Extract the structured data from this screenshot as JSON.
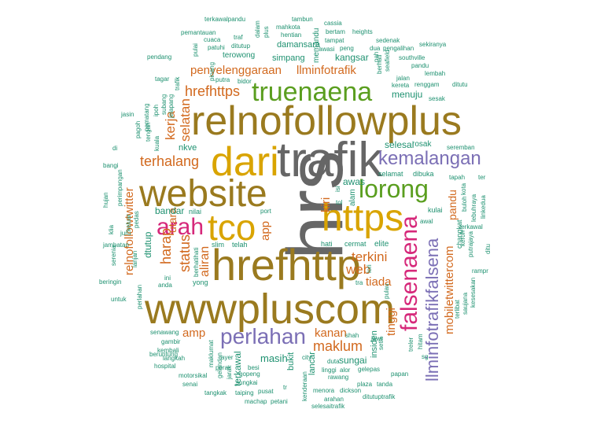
{
  "colors": {
    "olive": "#9a7a1f",
    "gray": "#666666",
    "gold": "#d9a400",
    "green": "#5a9e1f",
    "orange": "#d2691e",
    "magenta": "#d6287a",
    "purple": "#7b6fb5",
    "teal": "#1e9170"
  },
  "words": [
    {
      "text": "hrs",
      "color": "gray",
      "rotate": true
    },
    {
      "text": "trafik",
      "color": "gray",
      "rotate": false
    },
    {
      "text": "wwwpluscom",
      "color": "olive",
      "rotate": false
    },
    {
      "text": "relnofollowplus",
      "color": "olive",
      "rotate": false
    },
    {
      "text": "hrefhttp",
      "color": "olive",
      "rotate": false
    },
    {
      "text": "website",
      "color": "olive",
      "rotate": false
    },
    {
      "text": "dari",
      "color": "gold",
      "rotate": false
    },
    {
      "text": "https",
      "color": "gold",
      "rotate": false
    },
    {
      "text": "tco",
      "color": "gold",
      "rotate": false
    },
    {
      "text": "truenaena",
      "color": "green",
      "rotate": false
    },
    {
      "text": "lorong",
      "color": "green",
      "rotate": false
    },
    {
      "text": "falsenaena",
      "color": "magenta",
      "rotate": true
    },
    {
      "text": "arah",
      "color": "magenta",
      "rotate": false
    },
    {
      "text": "perlahan",
      "color": "purple",
      "rotate": false
    },
    {
      "text": "kemalangan",
      "color": "purple",
      "rotate": false
    },
    {
      "text": "llminfotrafikfalsena",
      "color": "purple",
      "rotate": true
    },
    {
      "text": "maklum",
      "color": "orange",
      "rotate": false
    },
    {
      "text": "hrefhttps",
      "color": "orange",
      "rotate": false
    },
    {
      "text": "terhalang",
      "color": "orange",
      "rotate": false
    },
    {
      "text": "penyelenggaraan",
      "color": "orange",
      "rotate": false
    },
    {
      "text": "llminfotrafik",
      "color": "orange",
      "rotate": false
    },
    {
      "text": "mobiletwittercom",
      "color": "orange",
      "rotate": true
    },
    {
      "text": "relnofollowtwitter",
      "color": "orange",
      "rotate": true
    },
    {
      "text": "selatan",
      "color": "orange",
      "rotate": true
    },
    {
      "text": "kerja",
      "color": "orange",
      "rotate": true
    },
    {
      "text": "harap",
      "color": "orange",
      "rotate": true
    },
    {
      "text": "status",
      "color": "orange",
      "rotate": true
    },
    {
      "text": "aliran",
      "color": "orange",
      "rotate": true
    },
    {
      "text": "terkini",
      "color": "orange",
      "rotate": false
    },
    {
      "text": "web",
      "color": "orange",
      "rotate": false
    },
    {
      "text": "tiada",
      "color": "orange",
      "rotate": false
    },
    {
      "text": "kanan",
      "color": "orange",
      "rotate": false
    },
    {
      "text": "tinggi",
      "color": "orange",
      "rotate": true
    },
    {
      "text": "amp",
      "color": "orange",
      "rotate": false
    },
    {
      "text": "app",
      "color": "orange",
      "rotate": true
    },
    {
      "text": "kiri",
      "color": "orange",
      "rotate": true
    },
    {
      "text": "pandu",
      "color": "orange",
      "rotate": true
    },
    {
      "text": "utara",
      "color": "orange",
      "rotate": true
    },
    {
      "text": "masih",
      "color": "teal",
      "rotate": false
    },
    {
      "text": "menuju",
      "color": "teal",
      "rotate": false
    },
    {
      "text": "selesai",
      "color": "teal",
      "rotate": false
    },
    {
      "text": "awas",
      "color": "teal",
      "rotate": false
    },
    {
      "text": "sungai",
      "color": "teal",
      "rotate": false
    },
    {
      "text": "kangsar",
      "color": "teal",
      "rotate": false
    },
    {
      "text": "simpang",
      "color": "teal",
      "rotate": false
    },
    {
      "text": "damansara",
      "color": "teal",
      "rotate": false
    },
    {
      "text": "terowong",
      "color": "teal",
      "rotate": false
    },
    {
      "text": "insiden",
      "color": "teal",
      "rotate": true
    },
    {
      "text": "terkawal",
      "color": "teal",
      "rotate": true
    },
    {
      "text": "bandar",
      "color": "teal",
      "rotate": false
    },
    {
      "text": "lancar",
      "color": "teal",
      "rotate": true
    },
    {
      "text": "bukit",
      "color": "teal",
      "rotate": true
    },
    {
      "text": "elite",
      "color": "teal",
      "rotate": false
    },
    {
      "text": "rosak",
      "color": "teal",
      "rotate": false
    },
    {
      "text": "nkve",
      "color": "teal",
      "rotate": false
    },
    {
      "text": "dtutup",
      "color": "teal",
      "rotate": true
    },
    {
      "text": "alam",
      "color": "teal",
      "rotate": true
    },
    {
      "text": "memandu",
      "color": "teal",
      "rotate": true
    },
    {
      "text": "selamat",
      "color": "teal",
      "rotate": false
    },
    {
      "text": "dibuka",
      "color": "teal",
      "rotate": false
    },
    {
      "text": "changkat",
      "color": "teal",
      "rotate": true
    },
    {
      "text": "kulai",
      "color": "teal",
      "rotate": false
    },
    {
      "text": "cermat",
      "color": "teal",
      "rotate": false
    },
    {
      "text": "hati",
      "color": "teal",
      "rotate": false
    },
    {
      "text": "slim",
      "color": "teal",
      "rotate": false
    },
    {
      "text": "telah",
      "color": "teal",
      "rotate": false
    },
    {
      "text": "nilai",
      "color": "teal",
      "rotate": false
    },
    {
      "text": "port",
      "color": "teal",
      "rotate": false
    },
    {
      "text": "berhatihati",
      "color": "teal",
      "rotate": true
    },
    {
      "text": "yong",
      "color": "teal",
      "rotate": false
    },
    {
      "text": "ini",
      "color": "teal",
      "rotate": false
    },
    {
      "text": "anda",
      "color": "teal",
      "rotate": false
    },
    {
      "text": "lori",
      "color": "teal",
      "rotate": true
    },
    {
      "text": "tra",
      "color": "teal",
      "rotate": false
    },
    {
      "text": "jalan",
      "color": "teal",
      "rotate": false
    },
    {
      "text": "renggam",
      "color": "teal",
      "rotate": false
    },
    {
      "text": "sesak",
      "color": "teal",
      "rotate": false
    },
    {
      "text": "lembah",
      "color": "teal",
      "rotate": false
    },
    {
      "text": "kereta",
      "color": "teal",
      "rotate": false
    },
    {
      "text": "ditutu",
      "color": "teal",
      "rotate": false
    },
    {
      "text": "pah",
      "color": "teal",
      "rotate": true
    },
    {
      "text": "seafield",
      "color": "teal",
      "rotate": true
    },
    {
      "text": "berhati",
      "color": "teal",
      "rotate": true
    },
    {
      "text": "southville",
      "color": "teal",
      "rotate": false
    },
    {
      "text": "pandu",
      "color": "teal",
      "rotate": false
    },
    {
      "text": "pengalihan",
      "color": "teal",
      "rotate": false
    },
    {
      "text": "sekiranya",
      "color": "teal",
      "rotate": false
    },
    {
      "text": "sedenak",
      "color": "teal",
      "rotate": false
    },
    {
      "text": "peng",
      "color": "teal",
      "rotate": false
    },
    {
      "text": "dua",
      "color": "teal",
      "rotate": false
    },
    {
      "text": "tampat",
      "color": "teal",
      "rotate": false
    },
    {
      "text": "heights",
      "color": "teal",
      "rotate": false
    },
    {
      "text": "bertam",
      "color": "teal",
      "rotate": false
    },
    {
      "text": "cassia",
      "color": "teal",
      "rotate": false
    },
    {
      "text": "tambun",
      "color": "teal",
      "rotate": false
    },
    {
      "text": "awasi",
      "color": "teal",
      "rotate": false
    },
    {
      "text": "hentian",
      "color": "teal",
      "rotate": false
    },
    {
      "text": "mahkota",
      "color": "teal",
      "rotate": false
    },
    {
      "text": "plus",
      "color": "teal",
      "rotate": true
    },
    {
      "text": "dalam",
      "color": "teal",
      "rotate": true
    },
    {
      "text": "traf",
      "color": "teal",
      "rotate": false
    },
    {
      "text": "ditutup",
      "color": "teal",
      "rotate": false
    },
    {
      "text": "terkawalpandu",
      "color": "teal",
      "rotate": false
    },
    {
      "text": "pemantauan",
      "color": "teal",
      "rotate": false
    },
    {
      "text": "cuaca",
      "color": "teal",
      "rotate": false
    },
    {
      "text": "patuhi",
      "color": "teal",
      "rotate": false
    },
    {
      "text": "pulai",
      "color": "teal",
      "rotate": true
    },
    {
      "text": "pendang",
      "color": "teal",
      "rotate": false
    },
    {
      "text": "tagar",
      "color": "teal",
      "rotate": false
    },
    {
      "text": "putra",
      "color": "teal",
      "rotate": false
    },
    {
      "text": "bidor",
      "color": "teal",
      "rotate": false
    },
    {
      "text": "pinang",
      "color": "teal",
      "rotate": true
    },
    {
      "text": "trafik",
      "color": "teal",
      "rotate": true
    },
    {
      "text": "jasin",
      "color": "teal",
      "rotate": false
    },
    {
      "text": "pematang",
      "color": "teal",
      "rotate": true
    },
    {
      "text": "ipoh",
      "color": "teal",
      "rotate": true
    },
    {
      "text": "subang",
      "color": "teal",
      "rotate": true
    },
    {
      "text": "jelapang",
      "color": "teal",
      "rotate": true
    },
    {
      "text": "pagoh",
      "color": "teal",
      "rotate": true
    },
    {
      "text": "tengah",
      "color": "teal",
      "rotate": true
    },
    {
      "text": "kuala",
      "color": "teal",
      "rotate": true
    },
    {
      "text": "di",
      "color": "teal",
      "rotate": false
    },
    {
      "text": "bangi",
      "color": "teal",
      "rotate": false
    },
    {
      "text": "perimpangan",
      "color": "teal",
      "rotate": true
    },
    {
      "text": "hujan",
      "color": "teal",
      "rotate": true
    },
    {
      "text": "keluar",
      "color": "teal",
      "rotate": true
    },
    {
      "text": "klia",
      "color": "teal",
      "rotate": true
    },
    {
      "text": "pedas",
      "color": "teal",
      "rotate": true
    },
    {
      "text": "juru",
      "color": "teal",
      "rotate": false
    },
    {
      "text": "jambatan",
      "color": "teal",
      "rotate": false
    },
    {
      "text": "serenia",
      "color": "teal",
      "rotate": true
    },
    {
      "text": "lanjan",
      "color": "teal",
      "rotate": true
    },
    {
      "text": "beringin",
      "color": "teal",
      "rotate": false
    },
    {
      "text": "untuk",
      "color": "teal",
      "rotate": false
    },
    {
      "text": "perlahan",
      "color": "teal",
      "rotate": true
    },
    {
      "text": "senawang",
      "color": "teal",
      "rotate": false
    },
    {
      "text": "gambir",
      "color": "teal",
      "rotate": false
    },
    {
      "text": "kembali",
      "color": "teal",
      "rotate": false
    },
    {
      "text": "beruntung",
      "color": "teal",
      "rotate": false
    },
    {
      "text": "langkah",
      "color": "teal",
      "rotate": false
    },
    {
      "text": "hospital",
      "color": "teal",
      "rotate": false
    },
    {
      "text": "motorsikal",
      "color": "teal",
      "rotate": false
    },
    {
      "text": "senai",
      "color": "teal",
      "rotate": false
    },
    {
      "text": "tangkak",
      "color": "teal",
      "rotate": false
    },
    {
      "text": "taiping",
      "color": "teal",
      "rotate": false
    },
    {
      "text": "machap",
      "color": "teal",
      "rotate": false
    },
    {
      "text": "petani",
      "color": "teal",
      "rotate": false
    },
    {
      "text": "pusat",
      "color": "teal",
      "rotate": false
    },
    {
      "text": "tr",
      "color": "teal",
      "rotate": false
    },
    {
      "text": "maklumat",
      "color": "teal",
      "rotate": true
    },
    {
      "text": "ayer",
      "color": "teal",
      "rotate": false
    },
    {
      "text": "perai",
      "color": "teal",
      "rotate": false
    },
    {
      "text": "besi",
      "color": "teal",
      "rotate": false
    },
    {
      "text": "gopeng",
      "color": "teal",
      "rotate": false
    },
    {
      "text": "sungkai",
      "color": "teal",
      "rotate": false
    },
    {
      "text": "jarak",
      "color": "teal",
      "rotate": true
    },
    {
      "text": "gelendan",
      "color": "teal",
      "rotate": true
    },
    {
      "text": "city",
      "color": "teal",
      "rotate": false
    },
    {
      "text": "kenderaan",
      "color": "teal",
      "rotate": true
    },
    {
      "text": "linggi",
      "color": "teal",
      "rotate": false
    },
    {
      "text": "alor",
      "color": "teal",
      "rotate": false
    },
    {
      "text": "duta",
      "color": "teal",
      "rotate": false
    },
    {
      "text": "rawang",
      "color": "teal",
      "rotate": false
    },
    {
      "text": "gelepas",
      "color": "teal",
      "rotate": false
    },
    {
      "text": "papan",
      "color": "teal",
      "rotate": false
    },
    {
      "text": "plaza",
      "color": "teal",
      "rotate": false
    },
    {
      "text": "tanda",
      "color": "teal",
      "rotate": false
    },
    {
      "text": "menora",
      "color": "teal",
      "rotate": false
    },
    {
      "text": "dickson",
      "color": "teal",
      "rotate": false
    },
    {
      "text": "arahan",
      "color": "teal",
      "rotate": false
    },
    {
      "text": "selesaitrafik",
      "color": "teal",
      "rotate": false
    },
    {
      "text": "ditutuptrafik",
      "color": "teal",
      "rotate": false
    },
    {
      "text": "shah",
      "color": "teal",
      "rotate": false
    },
    {
      "text": "jawi",
      "color": "teal",
      "rotate": false
    },
    {
      "text": "pulau",
      "color": "teal",
      "rotate": true
    },
    {
      "text": "setia",
      "color": "teal",
      "rotate": true
    },
    {
      "text": "treler",
      "color": "teal",
      "rotate": true
    },
    {
      "text": "hitam",
      "color": "teal",
      "rotate": true
    },
    {
      "text": "sg",
      "color": "teal",
      "rotate": false
    },
    {
      "text": "terlibat",
      "color": "teal",
      "rotate": true
    },
    {
      "text": "saujana",
      "color": "teal",
      "rotate": true
    },
    {
      "text": "kesesakan",
      "color": "teal",
      "rotate": true
    },
    {
      "text": "rampr",
      "color": "teal",
      "rotate": false
    },
    {
      "text": "ditu",
      "color": "teal",
      "rotate": true
    },
    {
      "text": "putrajaya",
      "color": "teal",
      "rotate": true
    },
    {
      "text": "keroh",
      "color": "teal",
      "rotate": true
    },
    {
      "text": "terkawal",
      "color": "teal",
      "rotate": false
    },
    {
      "text": "linkedua",
      "color": "teal",
      "rotate": true
    },
    {
      "text": "lebuhraya",
      "color": "teal",
      "rotate": true
    },
    {
      "text": "buloh",
      "color": "teal",
      "rotate": true
    },
    {
      "text": "kota",
      "color": "teal",
      "rotate": true
    },
    {
      "text": "tapah",
      "color": "teal",
      "rotate": false
    },
    {
      "text": "ter",
      "color": "teal",
      "rotate": false
    },
    {
      "text": "seremban",
      "color": "teal",
      "rotate": false
    },
    {
      "text": "awal",
      "color": "teal",
      "rotate": false
    },
    {
      "text": "isi",
      "color": "teal",
      "rotate": true
    },
    {
      "text": "tol",
      "color": "teal",
      "rotate": false
    }
  ]
}
